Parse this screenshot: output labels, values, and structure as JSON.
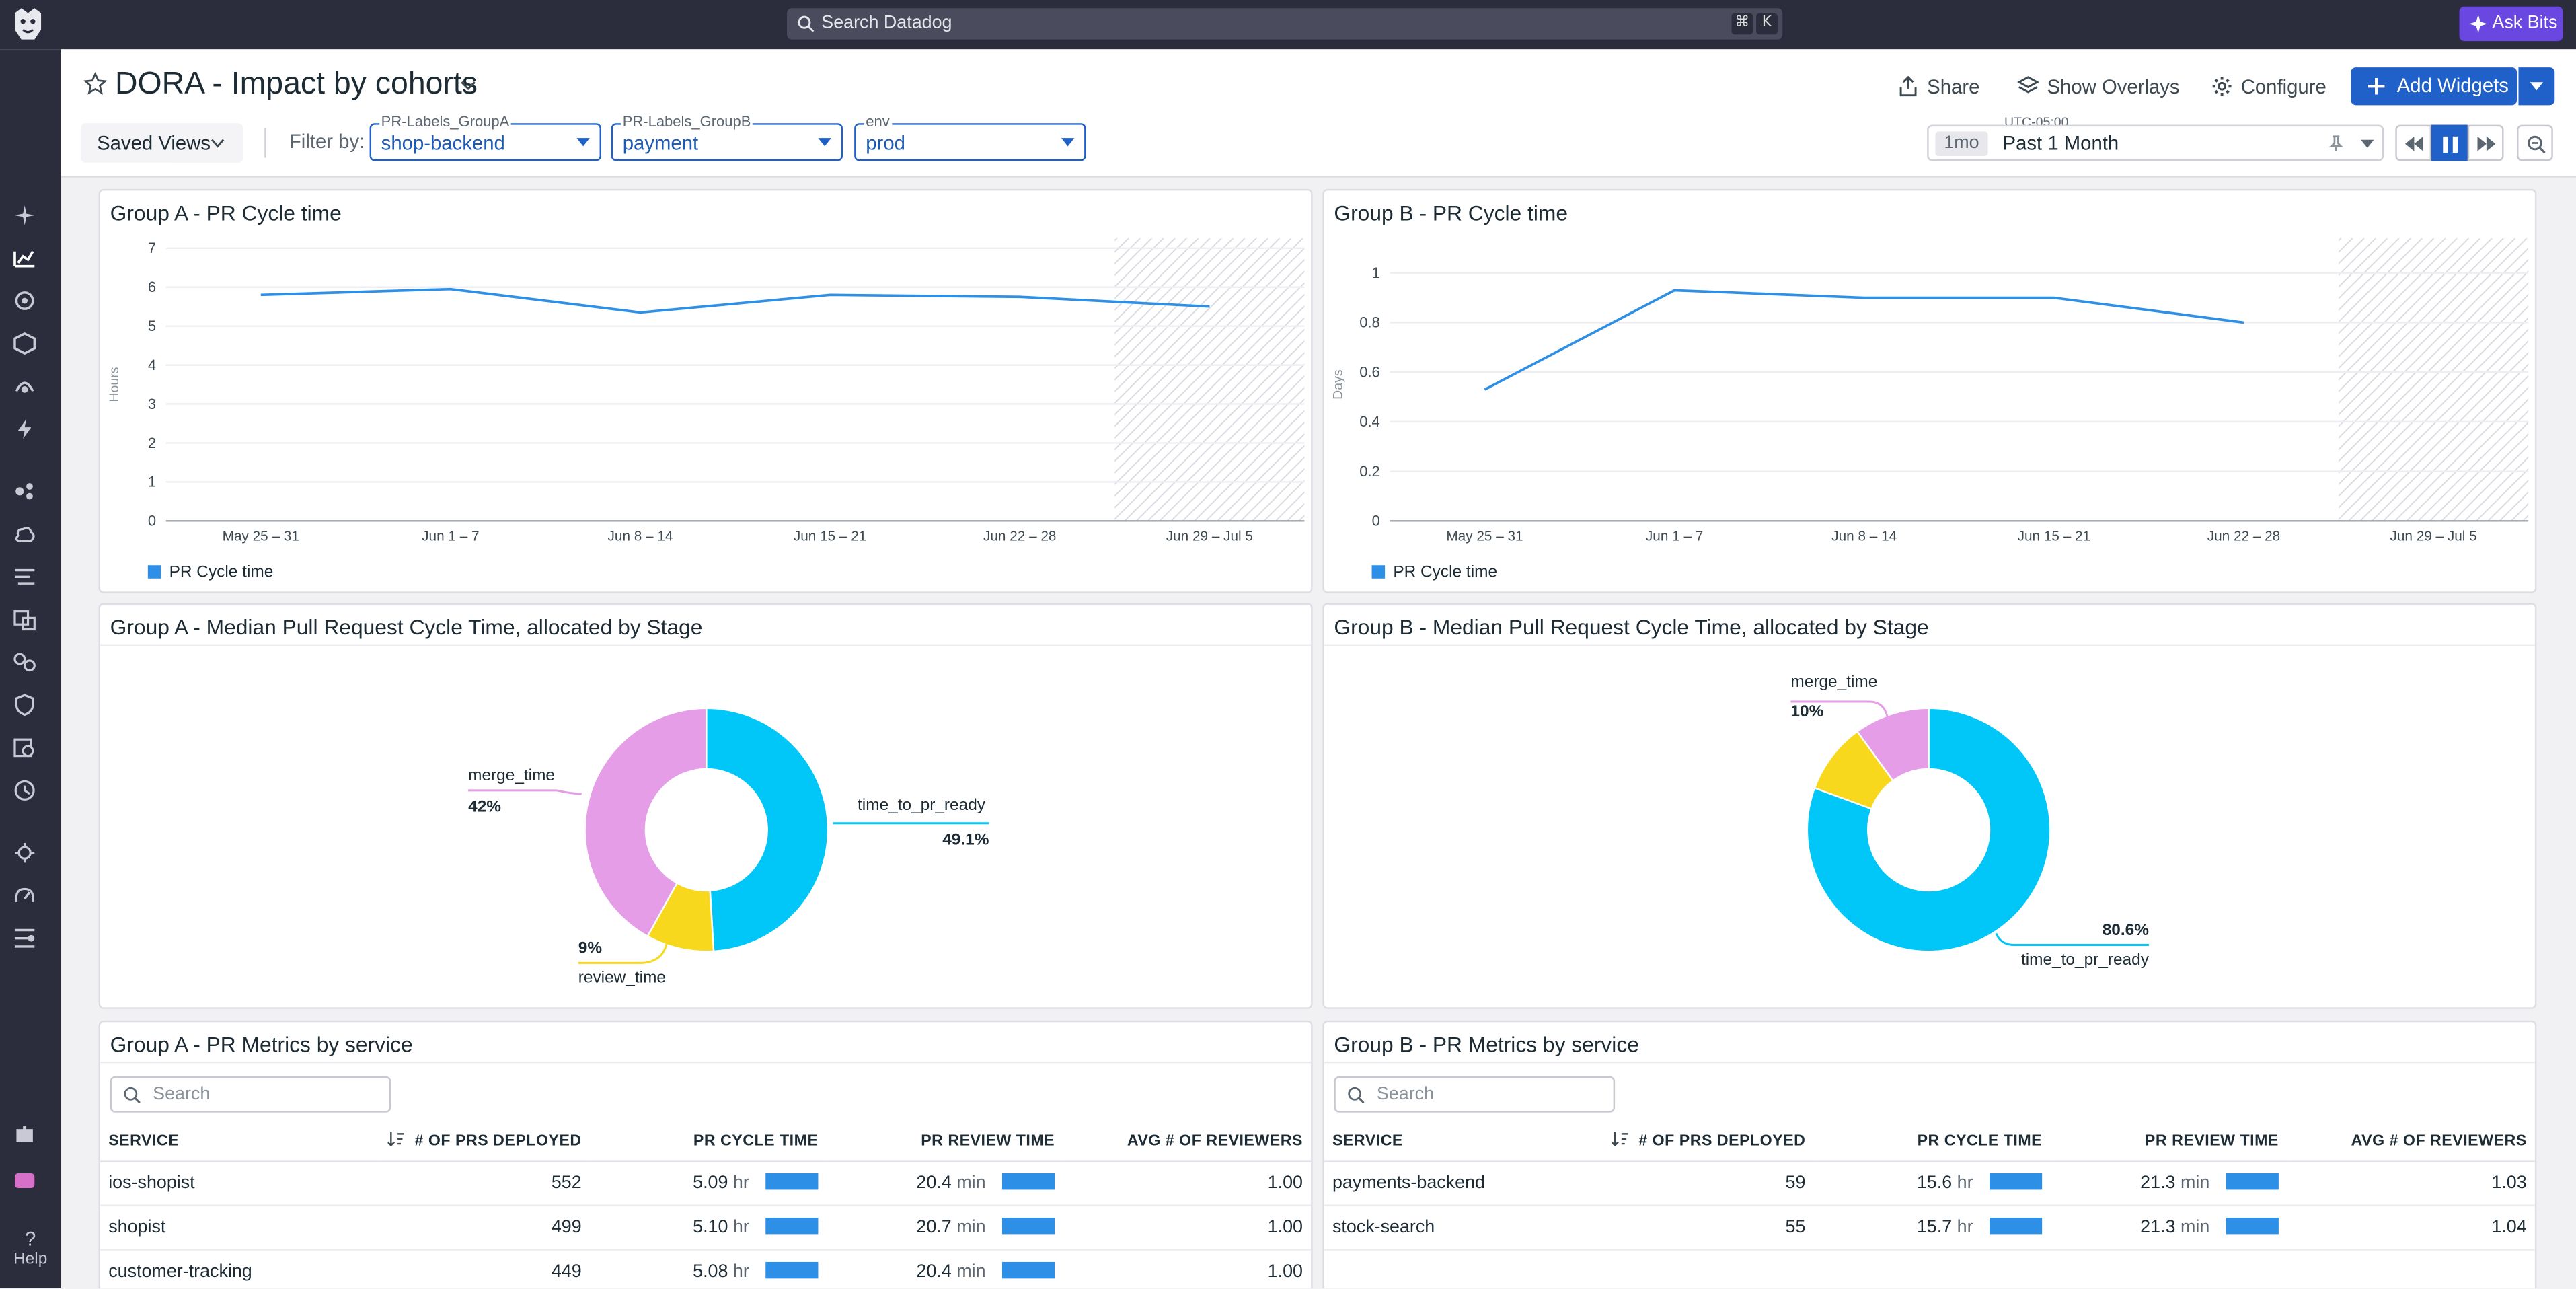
{
  "topbar": {
    "search_placeholder": "Search Datadog",
    "shortcut_keys": [
      "⌘",
      "K"
    ],
    "ask_bits": "Ask Bits"
  },
  "nav": {
    "help": "Help"
  },
  "header": {
    "title": "DORA - Impact by cohorts",
    "share": "Share",
    "show_overlays": "Show Overlays",
    "configure": "Configure",
    "add_widgets": "Add Widgets",
    "saved_views": "Saved Views",
    "filter_by": "Filter by:",
    "filters": [
      {
        "label": "PR-Labels_GroupA",
        "value": "shop-backend"
      },
      {
        "label": "PR-Labels_GroupB",
        "value": "payment"
      },
      {
        "label": "env",
        "value": "prod"
      }
    ],
    "timezone": "UTC-05:00",
    "time_shortcut": "1mo",
    "time_range": "Past 1 Month"
  },
  "widgets": {
    "a_cycle": {
      "title": "Group A - PR Cycle time",
      "legend": "PR Cycle time"
    },
    "b_cycle": {
      "title": "Group B - PR Cycle time",
      "legend": "PR Cycle time"
    },
    "a_stage": {
      "title": "Group A - Median Pull Request Cycle Time, allocated by Stage"
    },
    "b_stage": {
      "title": "Group B - Median Pull Request Cycle Time, allocated by Stage"
    },
    "a_table": {
      "title": "Group A - PR Metrics by service",
      "search": "Search"
    },
    "b_table": {
      "title": "Group B - PR Metrics by service",
      "search": "Search"
    }
  },
  "table_columns": [
    "SERVICE",
    "# OF PRS DEPLOYED",
    "PR CYCLE TIME",
    "PR REVIEW TIME",
    "AVG # OF REVIEWERS"
  ],
  "table_a_rows": [
    {
      "service": "ios-shopist",
      "prs": "552",
      "cycle": "5.09",
      "cycle_unit": "hr",
      "review": "20.4",
      "review_unit": "min",
      "reviewers": "1.00"
    },
    {
      "service": "shopist",
      "prs": "499",
      "cycle": "5.10",
      "cycle_unit": "hr",
      "review": "20.7",
      "review_unit": "min",
      "reviewers": "1.00"
    },
    {
      "service": "customer-tracking",
      "prs": "449",
      "cycle": "5.08",
      "cycle_unit": "hr",
      "review": "20.4",
      "review_unit": "min",
      "reviewers": "1.00"
    }
  ],
  "table_b_rows": [
    {
      "service": "payments-backend",
      "prs": "59",
      "cycle": "15.6",
      "cycle_unit": "hr",
      "review": "21.3",
      "review_unit": "min",
      "reviewers": "1.03"
    },
    {
      "service": "stock-search",
      "prs": "55",
      "cycle": "15.7",
      "cycle_unit": "hr",
      "review": "21.3",
      "review_unit": "min",
      "reviewers": "1.04"
    }
  ],
  "chart_data": [
    {
      "type": "line",
      "title": "Group A - PR Cycle time",
      "ylabel": "Hours",
      "ylim": [
        0,
        7
      ],
      "yticks": [
        0,
        1,
        2,
        3,
        4,
        5,
        6,
        7
      ],
      "categories": [
        "May 25 – 31",
        "Jun 1 – 7",
        "Jun 8 – 14",
        "Jun 15 – 21",
        "Jun 22 – 28",
        "Jun 29 – Jul 5"
      ],
      "series": [
        {
          "name": "PR Cycle time",
          "values": [
            5.8,
            5.95,
            5.35,
            5.8,
            5.75,
            5.5
          ],
          "color": "#2d8fe6"
        }
      ],
      "partial_last_period": true
    },
    {
      "type": "line",
      "title": "Group B - PR Cycle time",
      "ylabel": "Days",
      "ylim": [
        0,
        1.1
      ],
      "yticks": [
        0,
        0.2,
        0.4,
        0.6,
        0.8,
        1
      ],
      "categories": [
        "May 25 – 31",
        "Jun 1 – 7",
        "Jun 8 – 14",
        "Jun 15 – 21",
        "Jun 22 – 28",
        "Jun 29 – Jul 5"
      ],
      "series": [
        {
          "name": "PR Cycle time",
          "values": [
            0.53,
            0.93,
            0.9,
            0.9,
            0.8,
            null
          ],
          "color": "#2d8fe6"
        }
      ],
      "partial_last_period": true
    },
    {
      "type": "pie",
      "title": "Group A - Median Pull Request Cycle Time, allocated by Stage",
      "slices": [
        {
          "label": "time_to_pr_ready",
          "value": 49.1,
          "pct_text": "49.1%",
          "color": "#00c7f7"
        },
        {
          "label": "review_time",
          "value": 9,
          "pct_text": "9%",
          "color": "#f8d81c"
        },
        {
          "label": "merge_time",
          "value": 42,
          "pct_text": "42%",
          "color": "#e49de6"
        }
      ]
    },
    {
      "type": "pie",
      "title": "Group B - Median Pull Request Cycle Time, allocated by Stage",
      "slices": [
        {
          "label": "time_to_pr_ready",
          "value": 80.6,
          "pct_text": "80.6%",
          "color": "#00c7f7"
        },
        {
          "label": "review_time",
          "value": 9.4,
          "pct_text": "",
          "color": "#f8d81c"
        },
        {
          "label": "merge_time",
          "value": 10,
          "pct_text": "10%",
          "color": "#e49de6"
        }
      ]
    }
  ]
}
